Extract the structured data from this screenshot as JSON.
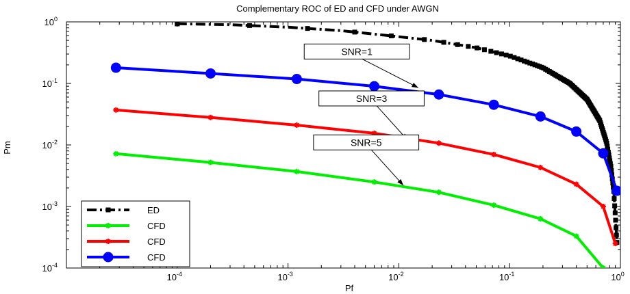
{
  "chart_data": {
    "type": "line",
    "title": "Complementary ROC of ED and CFD under AWGN",
    "xlabel": "Pf",
    "ylabel": "Pm",
    "xscale": "log",
    "yscale": "log",
    "xlim": [
      1e-05,
      1
    ],
    "ylim": [
      0.0001,
      1
    ],
    "x_ticks": [
      {
        "base": "10",
        "exp": "-4",
        "value": 0.0001
      },
      {
        "base": "10",
        "exp": "-3",
        "value": 0.001
      },
      {
        "base": "10",
        "exp": "-2",
        "value": 0.01
      },
      {
        "base": "10",
        "exp": "-1",
        "value": 0.1
      },
      {
        "base": "10",
        "exp": "0",
        "value": 1
      }
    ],
    "y_ticks": [
      {
        "base": "10",
        "exp": "-4",
        "value": 0.0001
      },
      {
        "base": "10",
        "exp": "-3",
        "value": 0.001
      },
      {
        "base": "10",
        "exp": "-2",
        "value": 0.01
      },
      {
        "base": "10",
        "exp": "-1",
        "value": 0.1
      },
      {
        "base": "10",
        "exp": "0",
        "value": 1
      }
    ],
    "grid": false,
    "legend_position": "bottom-left",
    "series": [
      {
        "name": "ED",
        "color": "#000000",
        "style": "dash-dot",
        "marker": "square",
        "dense_markers": true,
        "x": [
          0.0001,
          0.0003,
          0.001,
          0.003,
          0.008,
          0.02,
          0.05,
          0.1,
          0.2,
          0.35,
          0.5,
          0.65,
          0.75,
          0.82,
          0.87,
          0.9,
          0.93
        ],
        "y": [
          0.93,
          0.9,
          0.82,
          0.72,
          0.6,
          0.5,
          0.38,
          0.28,
          0.18,
          0.1,
          0.055,
          0.025,
          0.011,
          0.0045,
          0.0018,
          0.0007,
          0.00026
        ]
      },
      {
        "name": "CFD",
        "color": "#00ee00",
        "style": "solid",
        "marker": "star",
        "x": [
          2.8e-05,
          0.0002,
          0.0012,
          0.006,
          0.023,
          0.072,
          0.19,
          0.4,
          0.7
        ],
        "y": [
          0.0072,
          0.0052,
          0.0037,
          0.0025,
          0.0017,
          0.00105,
          0.00063,
          0.00033,
          0.0001
        ]
      },
      {
        "name": "CFD",
        "color": "#ff0000",
        "style": "solid",
        "marker": "star",
        "x": [
          2.8e-05,
          0.0002,
          0.0012,
          0.006,
          0.023,
          0.072,
          0.19,
          0.4,
          0.7,
          0.9
        ],
        "y": [
          0.037,
          0.028,
          0.021,
          0.0155,
          0.0107,
          0.007,
          0.0043,
          0.0023,
          0.001,
          0.00025
        ]
      },
      {
        "name": "CFD",
        "color": "#0000ff",
        "style": "solid",
        "marker": "circle",
        "x": [
          2.8e-05,
          0.0002,
          0.0012,
          0.006,
          0.023,
          0.072,
          0.19,
          0.4,
          0.7,
          0.93
        ],
        "y": [
          0.18,
          0.145,
          0.118,
          0.09,
          0.066,
          0.045,
          0.029,
          0.0165,
          0.0073,
          0.0018
        ]
      }
    ],
    "annotations": [
      {
        "text": "SNR=1",
        "target_x": 0.015,
        "target_y": 0.085,
        "box_x": 0.0014,
        "box_y": 0.33,
        "box_width_decades": 0.95
      },
      {
        "text": "SNR=3",
        "target_x": 0.012,
        "target_y": 0.012,
        "box_x": 0.0019,
        "box_y": 0.057,
        "box_width_decades": 0.95
      },
      {
        "text": "SNR=5",
        "target_x": 0.011,
        "target_y": 0.0022,
        "box_x": 0.0017,
        "box_y": 0.011,
        "box_width_decades": 0.95
      }
    ]
  }
}
